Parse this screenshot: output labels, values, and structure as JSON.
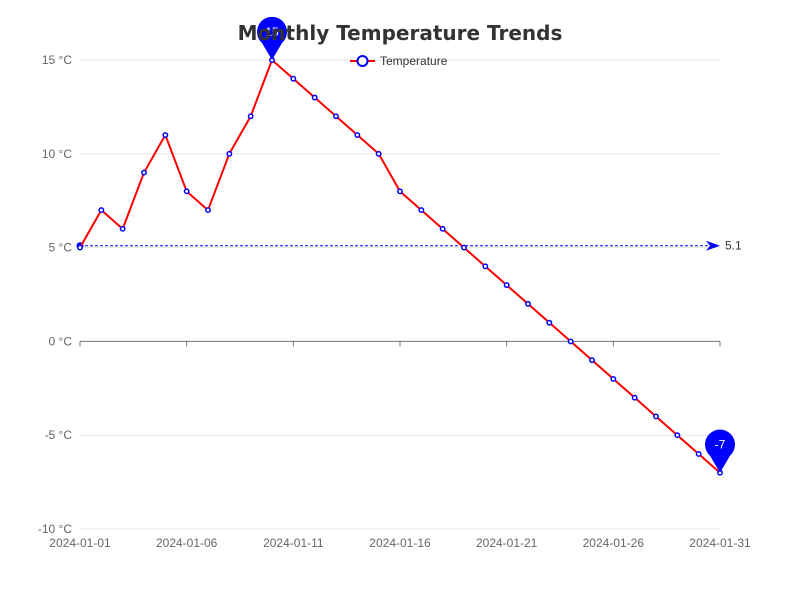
{
  "chart_data": {
    "type": "line",
    "title": "Monthly Temperature Trends",
    "xlabel": "",
    "ylabel": "",
    "x": [
      "2024-01-01",
      "2024-01-02",
      "2024-01-03",
      "2024-01-04",
      "2024-01-05",
      "2024-01-06",
      "2024-01-07",
      "2024-01-08",
      "2024-01-09",
      "2024-01-10",
      "2024-01-11",
      "2024-01-12",
      "2024-01-13",
      "2024-01-14",
      "2024-01-15",
      "2024-01-16",
      "2024-01-17",
      "2024-01-18",
      "2024-01-19",
      "2024-01-20",
      "2024-01-21",
      "2024-01-22",
      "2024-01-23",
      "2024-01-24",
      "2024-01-25",
      "2024-01-26",
      "2024-01-27",
      "2024-01-28",
      "2024-01-29",
      "2024-01-30",
      "2024-01-31"
    ],
    "x_tick_labels": [
      "2024-01-01",
      "2024-01-06",
      "2024-01-11",
      "2024-01-16",
      "2024-01-21",
      "2024-01-26",
      "2024-01-31"
    ],
    "y_ticks": [
      -10,
      -5,
      0,
      5,
      10,
      15
    ],
    "y_unit": " °C",
    "ylim": [
      -10,
      15
    ],
    "grid": true,
    "legend_position": "top-center",
    "series": [
      {
        "name": "Temperature",
        "line_color": "#ff0000",
        "marker_color": "#0000ff",
        "values": [
          5,
          7,
          6,
          9,
          11,
          8,
          7,
          10,
          12,
          15,
          14,
          13,
          12,
          11,
          10,
          8,
          7,
          6,
          5,
          4,
          3,
          2,
          1,
          0,
          -1,
          -2,
          -3,
          -4,
          -5,
          -6,
          -7
        ]
      }
    ],
    "mark_points": [
      {
        "label": "15",
        "x": "2024-01-10",
        "value": 15
      },
      {
        "label": "-7",
        "x": "2024-01-31",
        "value": -7
      }
    ],
    "mark_line": {
      "label": "5.1",
      "value": 5.1
    }
  }
}
